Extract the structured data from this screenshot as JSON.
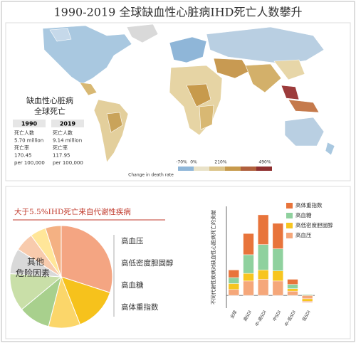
{
  "title": "1990-2019 全球缺血性心脏病IHD死亡人数攀升",
  "map": {
    "legend_title": "Change in death rate",
    "legend_ticks": [
      "-70%",
      "0%",
      "210%",
      "490%"
    ]
  },
  "stats": {
    "heading": [
      "缺血性心脏病",
      "全球死亡"
    ],
    "columns": [
      {
        "year": "1990",
        "deaths_label": "死亡人数",
        "deaths": "5.70 million",
        "rate_label": "死亡率",
        "rate": "170.45",
        "rate_unit": "per 100,000"
      },
      {
        "year": "2019",
        "deaths_label": "死亡人数",
        "deaths": "9.14 million",
        "rate_label": "死亡率",
        "rate": "117.95",
        "rate_unit": "per 100,000"
      }
    ]
  },
  "chart_data": [
    {
      "type": "pie",
      "title": "大于5.5%IHD死亡来自代谢性疾病",
      "categories": [
        "高血压",
        "高低密度胆固醇",
        "高血糖",
        "高体重指数",
        null,
        null,
        null,
        null,
        null
      ],
      "values": [
        30,
        14,
        10,
        10,
        12,
        8,
        6,
        5,
        5
      ],
      "colors": [
        "#f4a582",
        "#f6c21c",
        "#fbd66a",
        "#a8d08d",
        "#c9dfa8",
        "#d9d9d9",
        "#f8cbad",
        "#ffe699",
        "#f4b183"
      ],
      "annotation": "其他\n危险因素"
    },
    {
      "type": "bar",
      "stacked": true,
      "ylabel": "不同代谢性疾病对缺血性心脏病死亡的贡献",
      "categories": [
        "全球",
        "高SDI",
        "中-高SDI",
        "中SDI",
        "中-低SDI",
        "低SDI"
      ],
      "ylim": [
        -1.5,
        10.5
      ],
      "series": [
        {
          "name": "高血压",
          "color": "#f5a77a",
          "values": [
            0.7,
            1.7,
            1.9,
            1.7,
            0.5,
            -0.4
          ]
        },
        {
          "name": "高低密度胆固醇",
          "color": "#f7c520",
          "values": [
            0.7,
            0.9,
            1.1,
            1.2,
            0.3,
            -0.3
          ]
        },
        {
          "name": "高血糖",
          "color": "#8fd19e",
          "values": [
            0.7,
            2.2,
            3.0,
            2.6,
            0.5,
            0.1
          ]
        },
        {
          "name": "高体重指数",
          "color": "#e8743b",
          "values": [
            0.9,
            2.5,
            3.5,
            3.0,
            0.6,
            -0.1
          ]
        }
      ]
    }
  ]
}
